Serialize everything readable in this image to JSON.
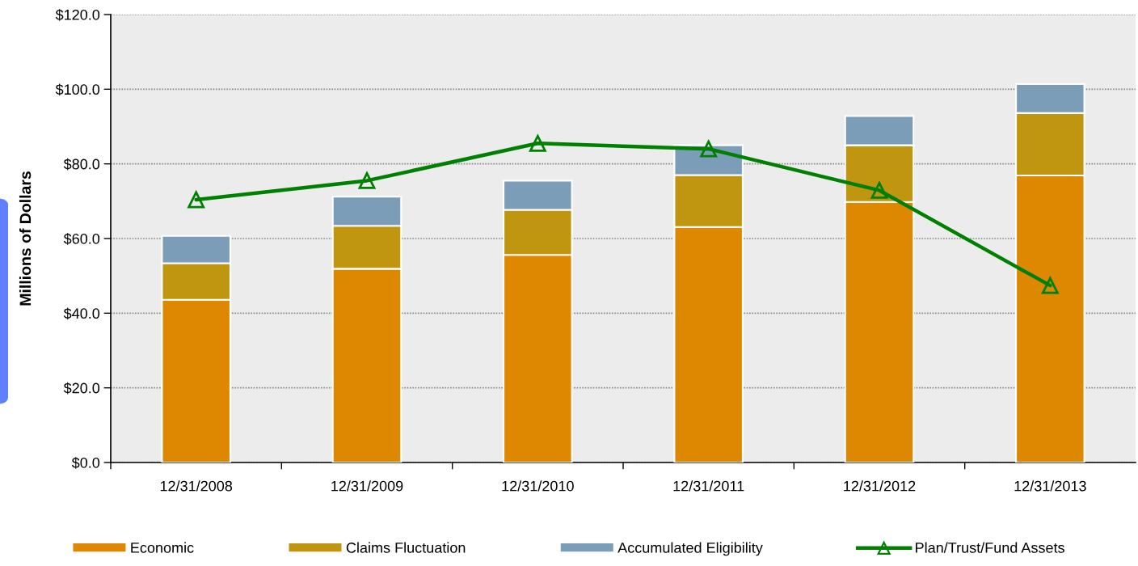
{
  "chart_data": {
    "type": "bar",
    "stacked": true,
    "categories": [
      "12/31/2008",
      "12/31/2009",
      "12/31/2010",
      "12/31/2011",
      "12/31/2012",
      "12/31/2013"
    ],
    "ylabel": "Millions of Dollars",
    "ylim": [
      0,
      120
    ],
    "yticks": [
      {
        "value": 0,
        "label": "$0.0"
      },
      {
        "value": 20,
        "label": "$20.0"
      },
      {
        "value": 40,
        "label": "$40.0"
      },
      {
        "value": 60,
        "label": "$60.0"
      },
      {
        "value": 80,
        "label": "$80.0"
      },
      {
        "value": 100,
        "label": "$100.0"
      },
      {
        "value": 120,
        "label": "$120.0"
      }
    ],
    "grid": "y",
    "legend": "bottom",
    "series": [
      {
        "name": "Economic",
        "color": "#dd8800",
        "values": [
          43.6,
          51.9,
          55.6,
          63.1,
          69.8,
          76.9
        ]
      },
      {
        "name": "Claims Fluctuation",
        "color": "#c09510",
        "values": [
          9.8,
          11.5,
          12.1,
          13.9,
          15.2,
          16.7
        ]
      },
      {
        "name": "Accumulated Eligibility",
        "color": "#7b9db8",
        "values": [
          7.3,
          7.8,
          7.8,
          8.0,
          7.8,
          7.8
        ]
      },
      {
        "name": "Plan/Trust/Fund Assets",
        "type": "line",
        "color": "#008000",
        "marker": "triangle",
        "line_style": "solid",
        "values": [
          70.4,
          75.5,
          85.5,
          84.0,
          72.9,
          47.4
        ]
      }
    ]
  }
}
